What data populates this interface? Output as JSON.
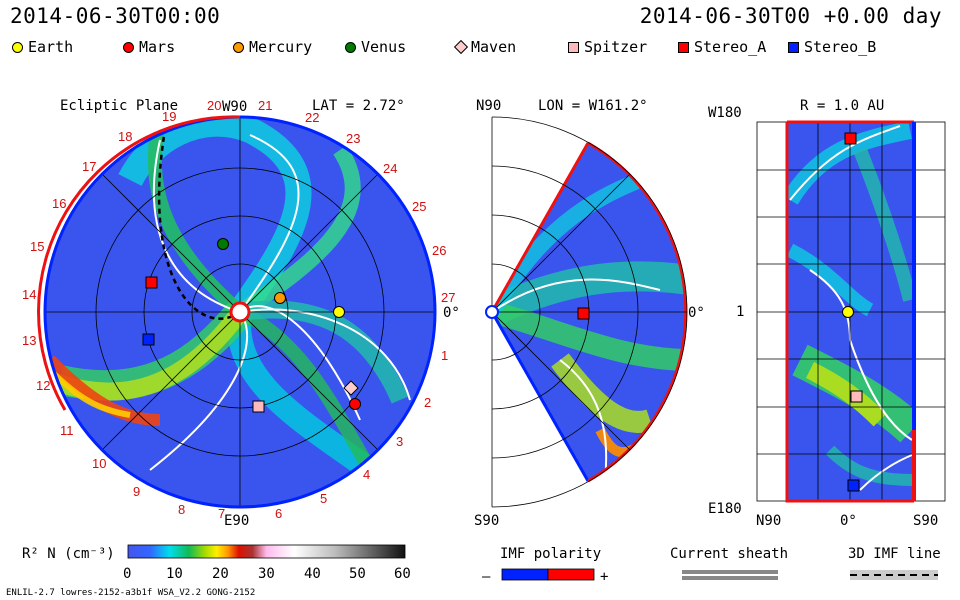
{
  "header": {
    "left_time": "2014-06-30T00:00",
    "right_time": "2014-06-30T00 +0.00 day"
  },
  "legend": [
    {
      "label": "Earth",
      "shape": "circle",
      "color": "#ffff00"
    },
    {
      "label": "Mars",
      "shape": "circle",
      "color": "#ff0000"
    },
    {
      "label": "Mercury",
      "shape": "circle",
      "color": "#ff9900"
    },
    {
      "label": "Venus",
      "shape": "circle",
      "color": "#007a00"
    },
    {
      "label": "Maven",
      "shape": "diamond",
      "color": "#ffcccc"
    },
    {
      "label": "Spitzer",
      "shape": "square",
      "color": "#ffbbbb"
    },
    {
      "label": "Stereo_A",
      "shape": "square",
      "color": "#ff0000"
    },
    {
      "label": "Stereo_B",
      "shape": "square",
      "color": "#0022ff"
    }
  ],
  "ecliptic": {
    "title": "Ecliptic Plane",
    "lat": "LAT = 2.72°",
    "top_label": "W90",
    "bottom_label": "E90",
    "right_label": "0°",
    "carrington": [
      "1",
      "2",
      "3",
      "4",
      "5",
      "6",
      "7",
      "8",
      "9",
      "10",
      "11",
      "12",
      "13",
      "14",
      "15",
      "16",
      "17",
      "18",
      "19",
      "20",
      "21",
      "22",
      "23",
      "24",
      "25",
      "26",
      "27"
    ]
  },
  "meridional": {
    "lon": "LON = W161.2°",
    "top_label": "N90",
    "bottom_label": "S90",
    "right_label": "0°"
  },
  "radial": {
    "title": "R = 1.0 AU",
    "top_left": "W180",
    "mid_left": "1",
    "bottom_left": "E180",
    "xlabels": [
      "N90",
      "0°",
      "S90"
    ]
  },
  "colorbar": {
    "label": "R² N (cm⁻³)",
    "ticks": [
      "0",
      "10",
      "20",
      "30",
      "40",
      "50",
      "60"
    ]
  },
  "bottom_legend": {
    "imf_polarity": "IMF polarity",
    "minus": "–",
    "plus": "+",
    "current_sheath": "Current sheath",
    "imf_line": "3D IMF line"
  },
  "footer": {
    "model": "ENLIL-2.7 lowres-2152-a3b1f WSA_V2.2 GONG-2152"
  }
}
